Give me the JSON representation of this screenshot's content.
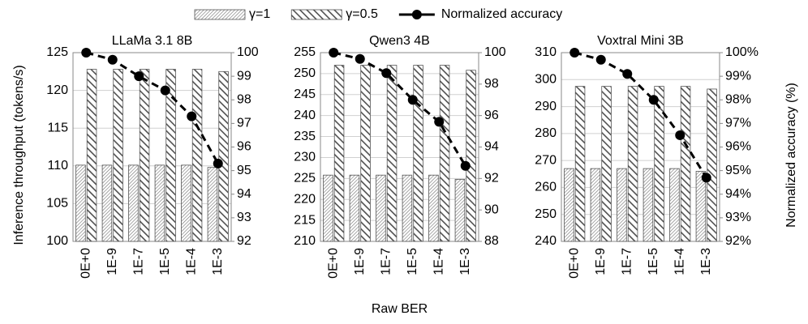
{
  "chart_data": [
    {
      "type": "bar-line",
      "title": "LLaMa 3.1 8B",
      "ylabel": "Inference throughput (tokens/s)",
      "categories": [
        "0E+0",
        "1E-9",
        "1E-7",
        "1E-5",
        "1E-4",
        "1E-3"
      ],
      "series": [
        {
          "name": "γ=1",
          "color": "#707070",
          "pattern": "dense",
          "values": [
            110.1,
            110.1,
            110.1,
            110.1,
            110.1,
            109.8
          ]
        },
        {
          "name": "γ=0.5",
          "color": "#505050",
          "pattern": "stripes",
          "values": [
            122.8,
            122.8,
            122.8,
            122.8,
            122.8,
            122.5
          ]
        },
        {
          "name": "Normalized accuracy",
          "color": "#000000",
          "axis": "y2",
          "values": [
            100,
            99.7,
            99.0,
            98.4,
            97.3,
            95.3
          ]
        }
      ],
      "ylim": [
        100,
        125
      ],
      "yticks": [
        100,
        105,
        110,
        115,
        120,
        125
      ],
      "y2lim": [
        92,
        100
      ],
      "y2ticks": [
        92,
        93,
        94,
        95,
        96,
        97,
        98,
        99,
        100
      ],
      "grid": true
    },
    {
      "type": "bar-line",
      "title": "Qwen3 4B",
      "xlabel": "Raw BER",
      "categories": [
        "0E+0",
        "1E-9",
        "1E-7",
        "1E-5",
        "1E-4",
        "1E-3"
      ],
      "series": [
        {
          "color": "#707070",
          "pattern": "dense",
          "values": [
            225.8,
            225.8,
            225.8,
            225.8,
            225.8,
            224.8
          ]
        },
        {
          "color": "#505050",
          "pattern": "stripes",
          "values": [
            252.0,
            252.0,
            252.0,
            252.0,
            252.0,
            250.8
          ]
        },
        {
          "color": "#000000",
          "axis": "y2",
          "values": [
            100,
            99.6,
            98.7,
            97.0,
            95.6,
            92.8
          ]
        }
      ],
      "ylim": [
        210,
        255
      ],
      "yticks": [
        210,
        215,
        220,
        225,
        230,
        235,
        240,
        245,
        250,
        255
      ],
      "y2lim": [
        88,
        100
      ],
      "y2ticks": [
        88,
        90,
        92,
        94,
        96,
        98,
        100
      ],
      "grid": true
    },
    {
      "type": "bar-line",
      "title": "Voxtral Mini 3B",
      "y2label": "Normalized accuracy (%)",
      "categories": [
        "0E+0",
        "1E-9",
        "1E-7",
        "1E-5",
        "1E-4",
        "1E-3"
      ],
      "series": [
        {
          "color": "#707070",
          "pattern": "dense",
          "values": [
            267,
            267,
            267,
            267,
            267,
            266
          ]
        },
        {
          "color": "#505050",
          "pattern": "stripes",
          "values": [
            297.5,
            297.5,
            297.5,
            297.5,
            297.5,
            296.5
          ]
        },
        {
          "color": "#000000",
          "axis": "y2",
          "values": [
            100,
            99.7,
            99.1,
            98.0,
            96.5,
            94.7
          ]
        }
      ],
      "ylim": [
        240,
        310
      ],
      "yticks": [
        240,
        250,
        260,
        270,
        280,
        290,
        300,
        310
      ],
      "y2lim": [
        92,
        100
      ],
      "y2ticks": [
        {
          "value": 92,
          "label": "92%"
        },
        {
          "value": 93,
          "label": "93%"
        },
        {
          "value": 94,
          "label": "94%"
        },
        {
          "value": 95,
          "label": "95%"
        },
        {
          "value": 96,
          "label": "96%"
        },
        {
          "value": 97,
          "label": "97%"
        },
        {
          "value": 98,
          "label": "98%"
        },
        {
          "value": 99,
          "label": "99%"
        },
        {
          "value": 100,
          "label": "100%"
        }
      ],
      "grid": true
    }
  ]
}
